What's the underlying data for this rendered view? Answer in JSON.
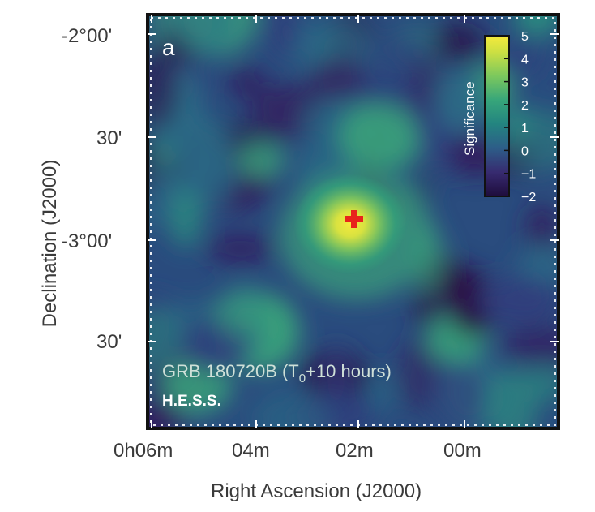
{
  "chart_data": {
    "type": "heatmap",
    "panel_label": "a",
    "xlabel": "Right Ascension (J2000)",
    "ylabel": "Declination (J2000)",
    "x_ticks": [
      "0h06m",
      "04m",
      "02m",
      "00m"
    ],
    "y_ticks": [
      "-2°00'",
      "30'",
      "-3°00'",
      "30'"
    ],
    "colorbar": {
      "label": "Significance",
      "ticks": [
        "5",
        "4",
        "3",
        "2",
        "1",
        "0",
        "−1",
        "−2"
      ],
      "range": [
        -2,
        5
      ]
    },
    "annotations": {
      "source_line_main": "GRB 180720B (T",
      "source_subscript": "0",
      "source_line_tail": "+10 hours)",
      "instrument": "H.E.S.S."
    },
    "marker": {
      "symbol": "+",
      "color": "#e8231c",
      "description": "GRB position"
    },
    "peak_significance": 5,
    "colors": {
      "low": "#2a0f45",
      "mid": "#26877a",
      "high": "#f3e84a"
    }
  }
}
